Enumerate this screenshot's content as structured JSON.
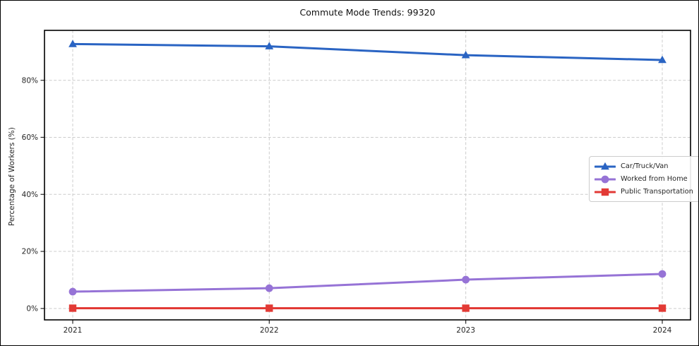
{
  "page": {
    "background": "#ffffff",
    "border_color": "#000000"
  },
  "chart_data": {
    "type": "line",
    "title": "Commute Mode Trends: 99320",
    "xlabel": "",
    "ylabel": "Percentage of Workers (%)",
    "categories": [
      "2021",
      "2022",
      "2023",
      "2024"
    ],
    "series": [
      {
        "name": "Car/Truck/Van",
        "color": "#2a64c3",
        "marker": "triangle",
        "values": [
          92.7,
          91.9,
          88.8,
          87.1
        ]
      },
      {
        "name": "Worked from Home",
        "color": "#9673d6",
        "marker": "circle",
        "values": [
          5.9,
          7.1,
          10.1,
          12.1
        ]
      },
      {
        "name": "Public Transportation",
        "color": "#e23a35",
        "marker": "square",
        "values": [
          0.1,
          0.1,
          0.1,
          0.1
        ]
      }
    ],
    "yticks": [
      0,
      20,
      40,
      60,
      80
    ],
    "ytick_suffix": "%",
    "ylim": [
      -4,
      97.5
    ],
    "grid": true,
    "grid_color": "#cccccc",
    "axis_text_color": "#262626",
    "spine_color": "#000000",
    "legend_position": "middle-right"
  }
}
